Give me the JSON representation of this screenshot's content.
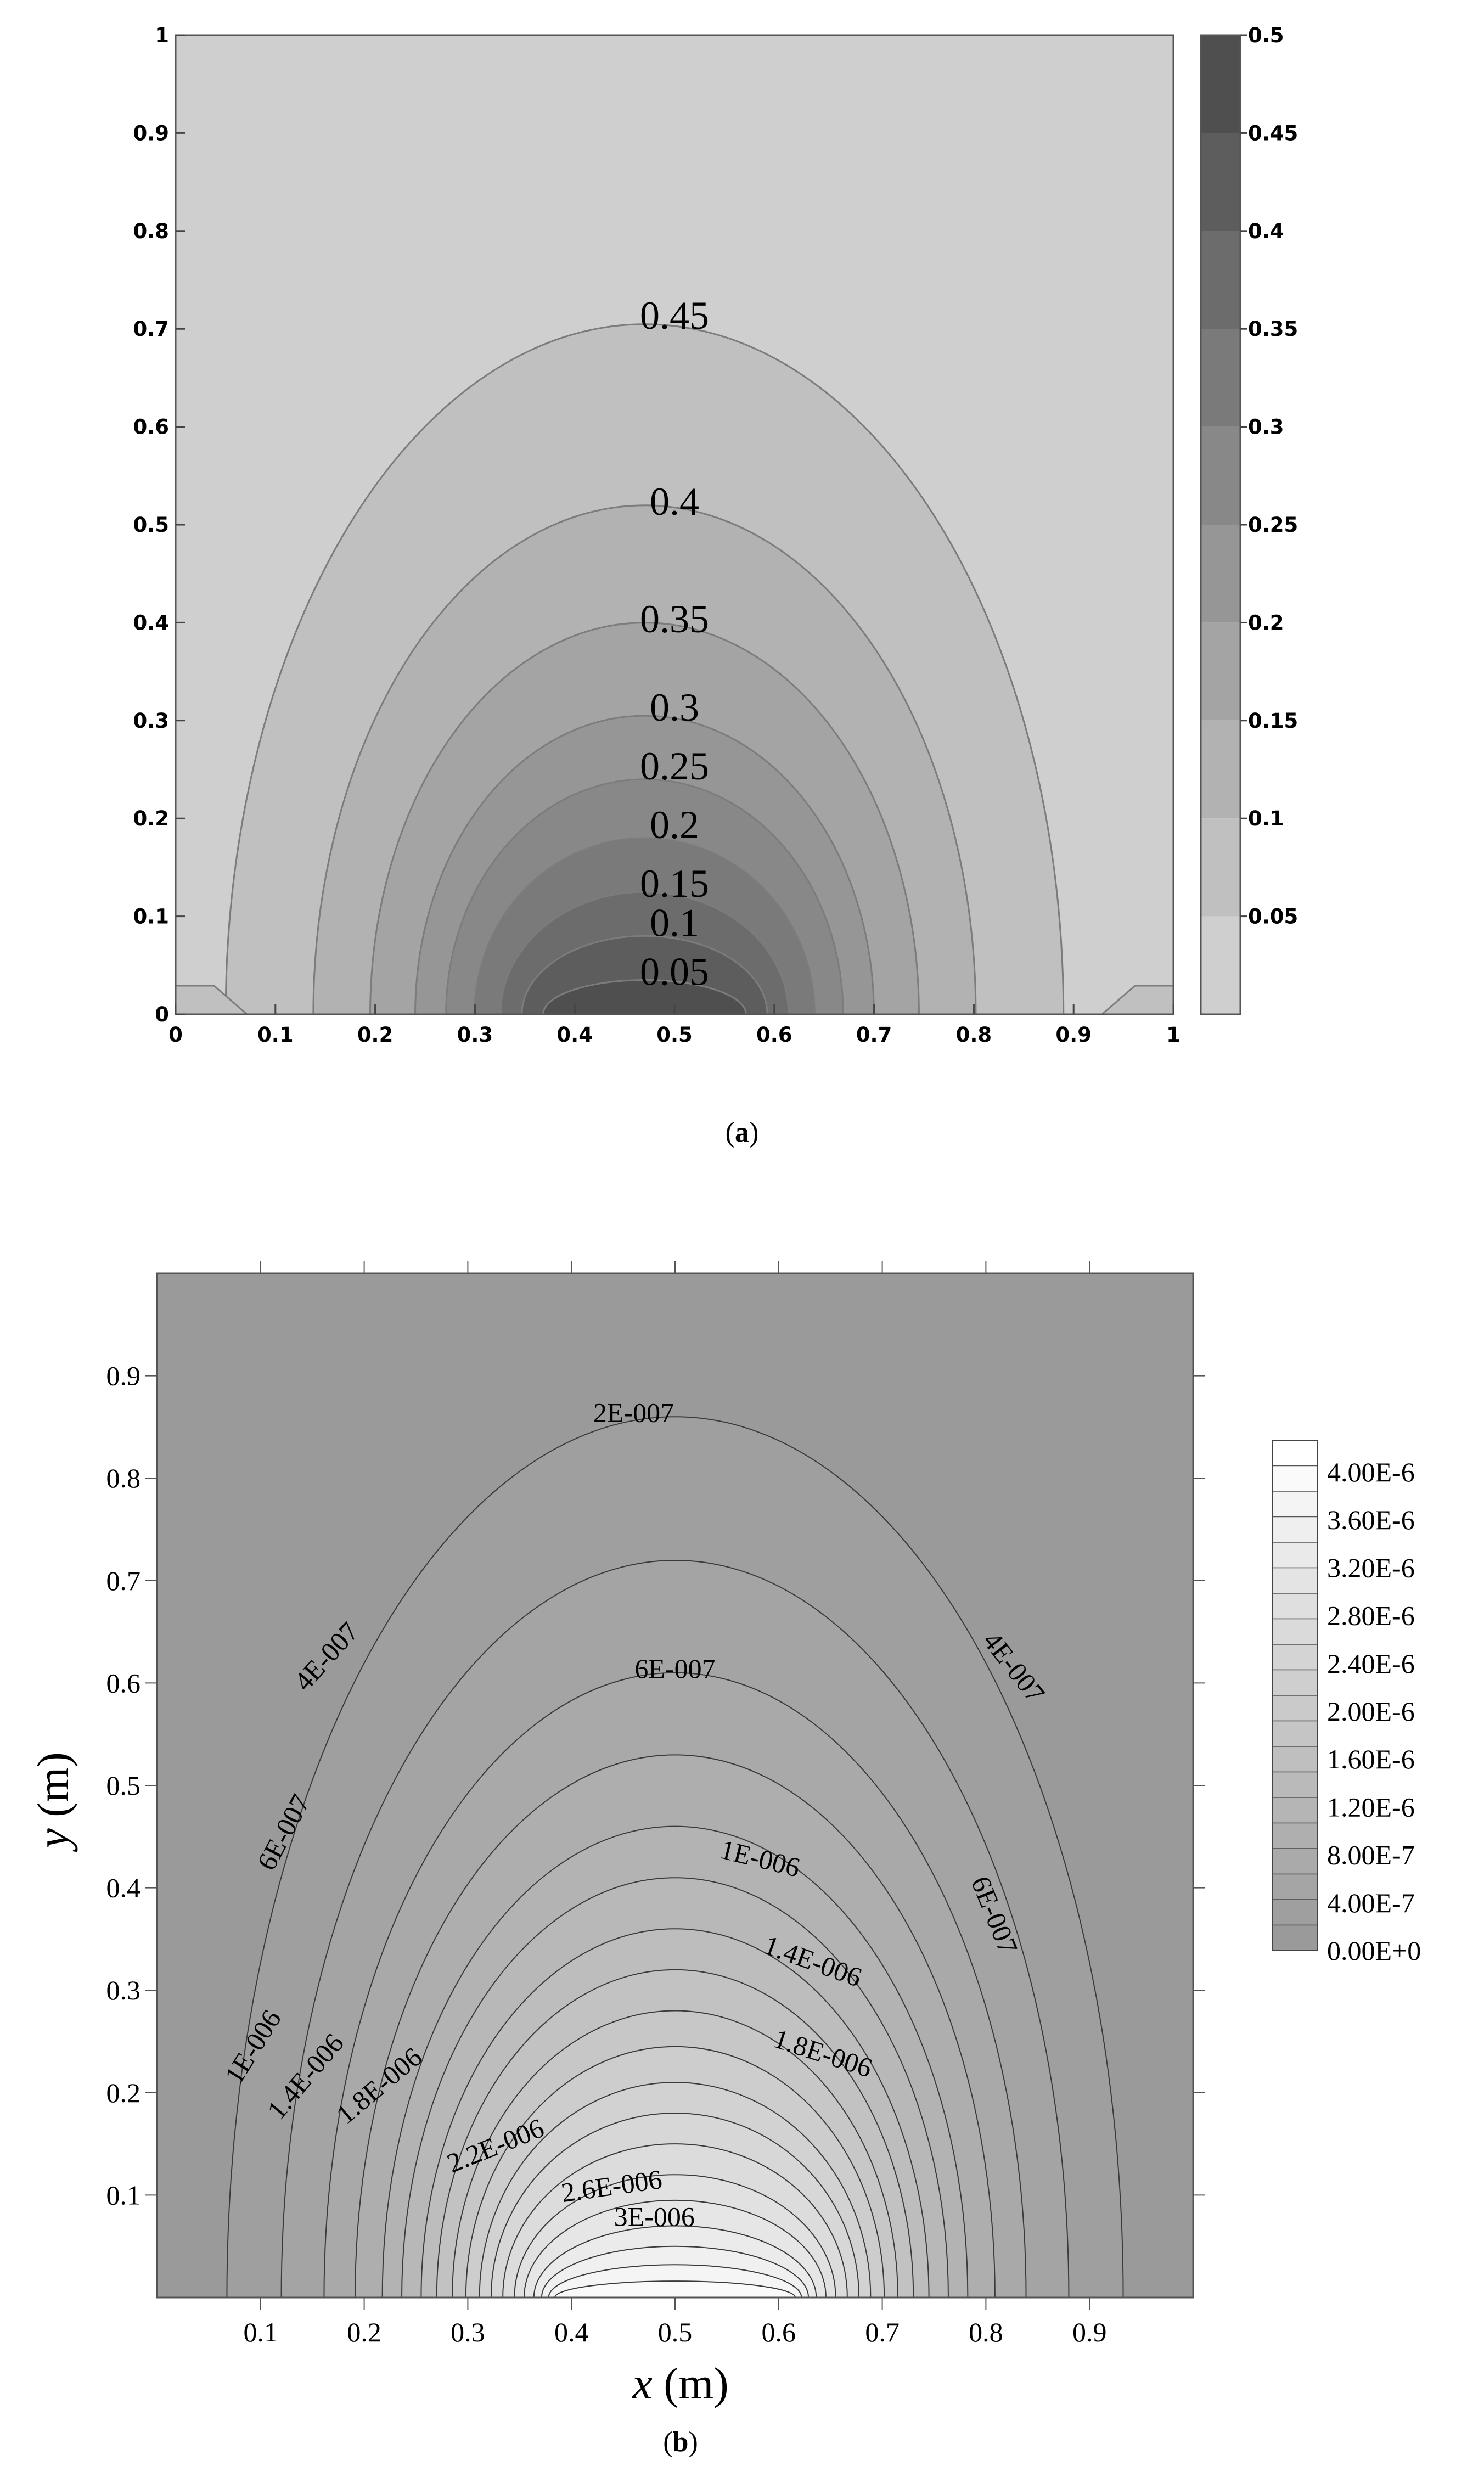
{
  "chart_data": [
    {
      "type": "contour",
      "panel_label": "a",
      "x": [
        0,
        0.1,
        0.2,
        0.3,
        0.4,
        0.5,
        0.6,
        0.7,
        0.8,
        0.9,
        1
      ],
      "y": [
        0,
        0.1,
        0.2,
        0.3,
        0.4,
        0.5,
        0.6,
        0.7,
        0.8,
        0.9,
        1
      ],
      "x_tick_labels": [
        "0",
        "0.1",
        "0.2",
        "0.3",
        "0.4",
        "0.5",
        "0.6",
        "0.7",
        "0.8",
        "0.9",
        "1"
      ],
      "y_tick_labels": [
        "0",
        "0.1",
        "0.2",
        "0.3",
        "0.4",
        "0.5",
        "0.6",
        "0.7",
        "0.8",
        "0.9",
        "1"
      ],
      "xlim": [
        0,
        1
      ],
      "ylim": [
        0,
        1
      ],
      "colorbar": {
        "range": [
          0,
          0.5
        ],
        "tick_values": [
          0.05,
          0.1,
          0.15,
          0.2,
          0.25,
          0.3,
          0.35,
          0.4,
          0.45,
          0.5
        ],
        "tick_labels": [
          "0.05",
          "0.1",
          "0.15",
          "0.2",
          "0.25",
          "0.3",
          "0.35",
          "0.4",
          "0.45",
          "0.5"
        ],
        "colors": [
          "#cfcfcf",
          "#c0c0c0",
          "#b2b2b2",
          "#a4a4a4",
          "#969696",
          "#888888",
          "#7a7a7a",
          "#6c6c6c",
          "#5d5d5d",
          "#4f4f4f"
        ]
      },
      "contours": [
        {
          "label": "0.45",
          "label_y": 0.7
        },
        {
          "label": "0.4",
          "label_y": 0.51
        },
        {
          "label": "0.35",
          "label_y": 0.39
        },
        {
          "label": "0.3",
          "label_y": 0.3
        },
        {
          "label": "0.25",
          "label_y": 0.24
        },
        {
          "label": "0.2",
          "label_y": 0.18
        },
        {
          "label": "0.15",
          "label_y": 0.12
        },
        {
          "label": "0.1",
          "label_y": 0.08
        },
        {
          "label": "0.05",
          "label_y": 0.03
        }
      ],
      "contour_apex_y": [
        0.705,
        0.52,
        0.4,
        0.305,
        0.24,
        0.18,
        0.125,
        0.08,
        0.035
      ]
    },
    {
      "type": "contour",
      "panel_label": "b",
      "x_tick_labels": [
        "0.1",
        "0.2",
        "0.3",
        "0.4",
        "0.5",
        "0.6",
        "0.7",
        "0.8",
        "0.9"
      ],
      "y_tick_labels": [
        "0.1",
        "0.2",
        "0.3",
        "0.4",
        "0.5",
        "0.6",
        "0.7",
        "0.8",
        "0.9"
      ],
      "xlim": [
        0,
        1
      ],
      "ylim": [
        0,
        1
      ],
      "xlabel_var": "x",
      "xlabel_unit": " (m)",
      "ylabel_var": "y",
      "ylabel_unit": " (m)",
      "colorbar": {
        "tick_labels": [
          "4.00E-6",
          "3.60E-6",
          "3.20E-6",
          "2.80E-6",
          "2.40E-6",
          "2.00E-6",
          "1.60E-6",
          "1.20E-6",
          "8.00E-7",
          "4.00E-7",
          "0.00E+0"
        ],
        "range": [
          0,
          4e-06
        ],
        "low_color": "#9a9a9a",
        "high_color": "#ffffff"
      },
      "contour_levels": [
        2e-07,
        4e-07,
        6e-07,
        8e-07,
        1e-06,
        1.2e-06,
        1.4e-06,
        1.6e-06,
        1.8e-06,
        2e-06,
        2.2e-06,
        2.4e-06,
        2.6e-06,
        2.8e-06,
        3e-06,
        3.2e-06,
        3.4e-06,
        3.6e-06,
        3.8e-06
      ],
      "contour_apex_y": [
        0.86,
        0.72,
        0.61,
        0.53,
        0.46,
        0.41,
        0.36,
        0.32,
        0.28,
        0.245,
        0.21,
        0.18,
        0.15,
        0.12,
        0.095,
        0.07,
        0.05,
        0.032,
        0.016
      ],
      "contour_labels": [
        "2E-007",
        "4E-007",
        "4E-007",
        "6E-007",
        "6E-007",
        "6E-007",
        "1E-006",
        "1E-006",
        "1.4E-006",
        "1.4E-006",
        "1.8E-006",
        "1.8E-006",
        "2.2E-006",
        "2.6E-006",
        "3E-006"
      ]
    }
  ]
}
